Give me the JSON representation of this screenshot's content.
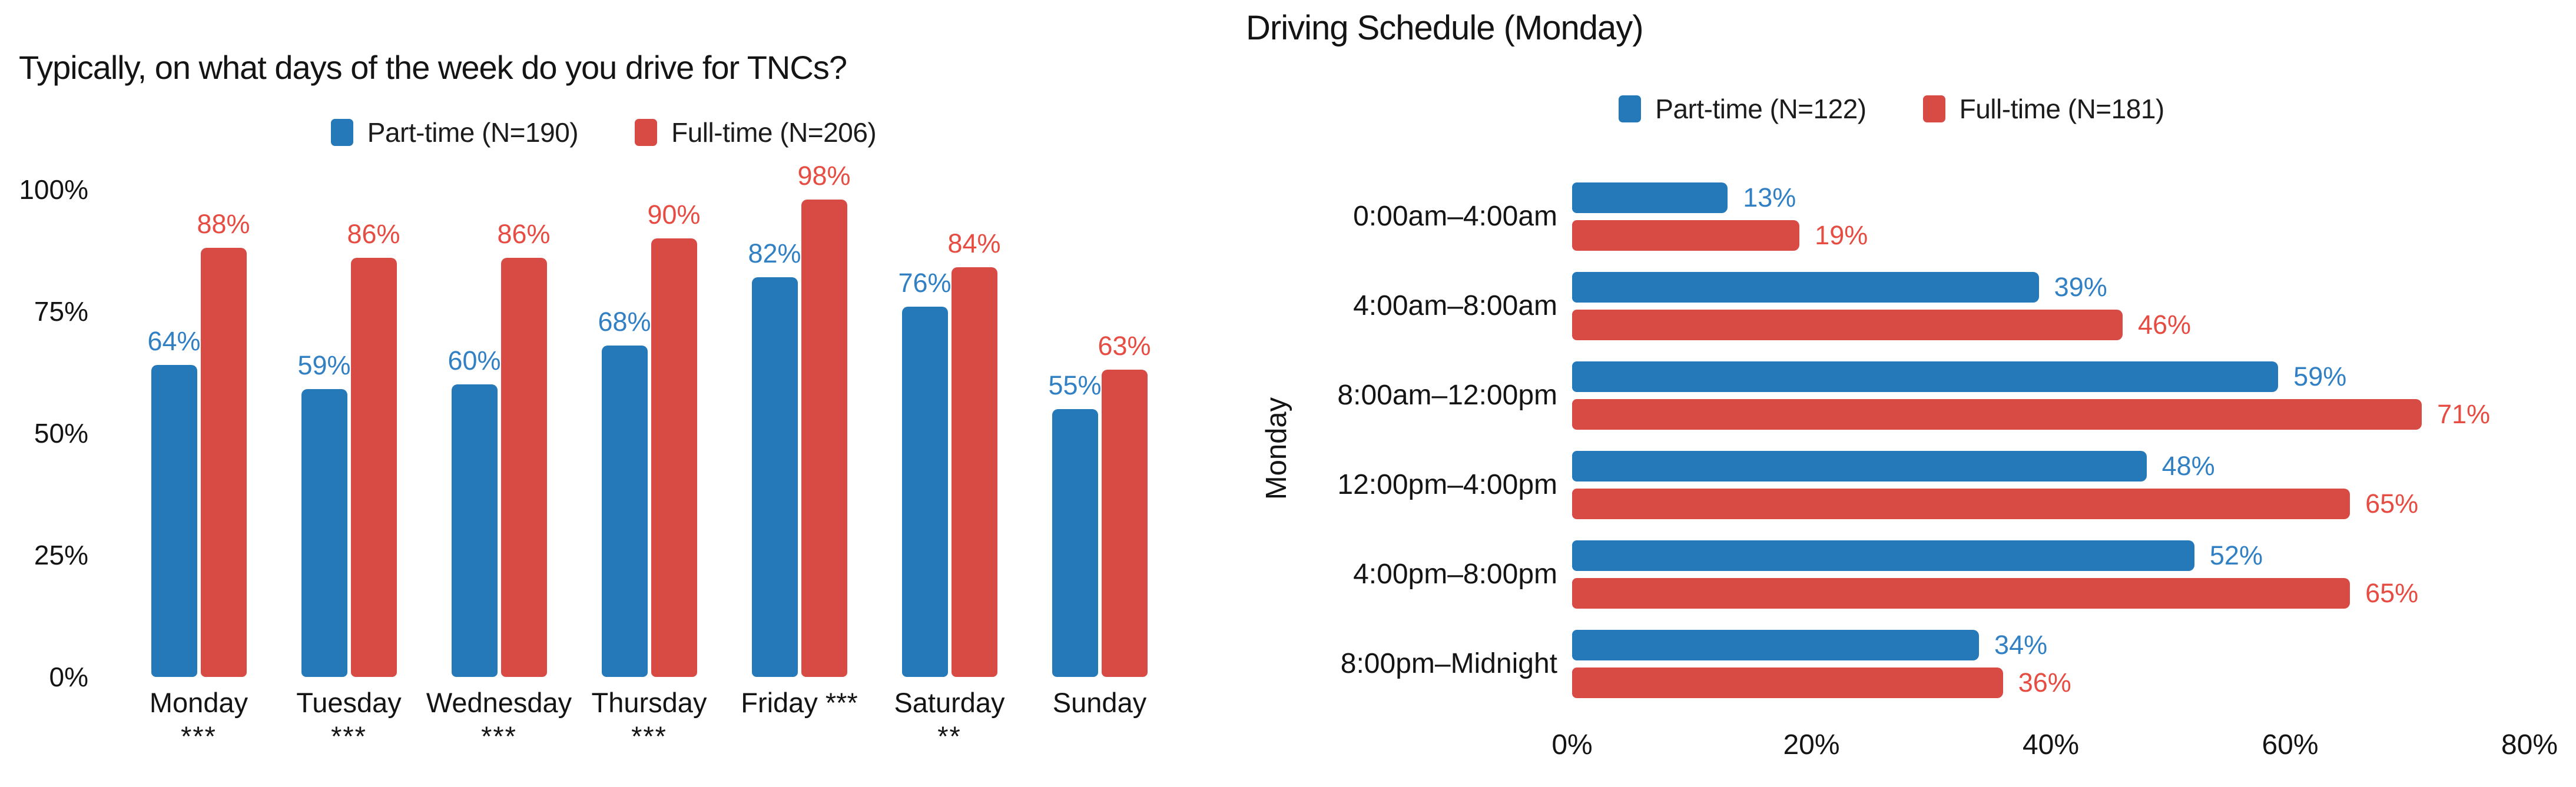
{
  "chart_data": [
    {
      "type": "bar",
      "title": "Typically, on what days of the week do you drive for TNCs?",
      "legend_position": "top",
      "grid": false,
      "value_label_suffix": "%",
      "categories": [
        {
          "label": "Monday",
          "note": "***"
        },
        {
          "label": "Tuesday",
          "note": "***"
        },
        {
          "label": "Wednesday",
          "note": "***"
        },
        {
          "label": "Thursday",
          "note": "***"
        },
        {
          "label": "Friday ***",
          "note": ""
        },
        {
          "label": "Saturday",
          "note": "**"
        },
        {
          "label": "Sunday",
          "note": ""
        }
      ],
      "series": [
        {
          "name": "Part-time (N=190)",
          "color": "#2679B8",
          "label_color": "#3180C4",
          "values": [
            64,
            59,
            60,
            68,
            82,
            76,
            55
          ]
        },
        {
          "name": "Full-time (N=206)",
          "color": "#D84B45",
          "label_color": "#E74C42",
          "values": [
            88,
            86,
            86,
            90,
            98,
            84,
            63
          ]
        }
      ],
      "y_axis": {
        "tick_labels": [
          "100%",
          "75%",
          "50%",
          "25%",
          "0%"
        ],
        "tick_values": [
          100,
          75,
          50,
          25,
          0
        ],
        "min": 0,
        "max": 100
      },
      "xlabel": "",
      "ylabel": ""
    },
    {
      "type": "bar-horizontal",
      "title": "Driving Schedule (Monday)",
      "legend_position": "top",
      "grid": false,
      "value_label_suffix": "%",
      "y_axis_label": "Monday",
      "categories": [
        "0:00am–4:00am",
        "4:00am–8:00am",
        "8:00am–12:00pm",
        "12:00pm–4:00pm",
        "4:00pm–8:00pm",
        "8:00pm–Midnight"
      ],
      "series": [
        {
          "name": "Part-time (N=122)",
          "color": "#2679B8",
          "label_color": "#3180C4",
          "values": [
            13,
            39,
            59,
            48,
            52,
            34
          ]
        },
        {
          "name": "Full-time (N=181)",
          "color": "#D84B45",
          "label_color": "#E74C42",
          "values": [
            19,
            46,
            71,
            65,
            65,
            36
          ]
        }
      ],
      "x_axis": {
        "tick_labels": [
          "0%",
          "20%",
          "40%",
          "60%",
          "80%"
        ],
        "tick_values": [
          0,
          20,
          40,
          60,
          80
        ],
        "min": 0,
        "max": 80
      }
    }
  ]
}
